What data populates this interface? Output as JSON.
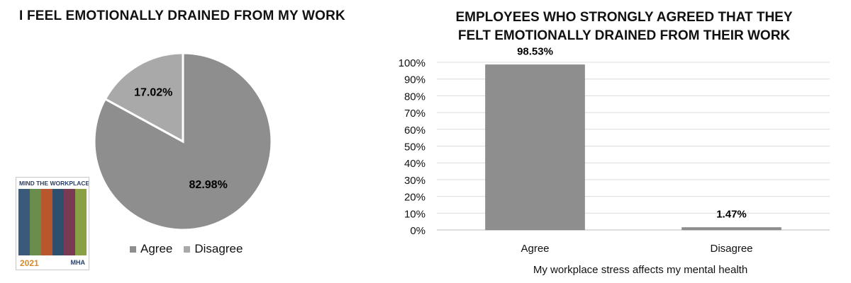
{
  "chart_data": [
    {
      "type": "pie",
      "title": "I FEEL EMOTIONALLY DRAINED FROM MY WORK",
      "slices": [
        {
          "label": "Agree",
          "value": 82.98,
          "display": "82.98%",
          "color": "#8e8e8e"
        },
        {
          "label": "Disagree",
          "value": 17.02,
          "display": "17.02%",
          "color": "#a9a9a9"
        }
      ],
      "legend_position": "bottom"
    },
    {
      "type": "bar",
      "title_lines": [
        "EMPLOYEES WHO STRONGLY AGREED THAT THEY",
        "FELT EMOTIONALLY DRAINED FROM THEIR WORK"
      ],
      "categories": [
        "Agree",
        "Disagree"
      ],
      "values": [
        98.53,
        1.47
      ],
      "data_labels": [
        "98.53%",
        "1.47%"
      ],
      "xlabel": "My workplace stress affects my mental health",
      "ylabel": "",
      "ylim": [
        0,
        100
      ],
      "yticks": [
        "0%",
        "10%",
        "20%",
        "30%",
        "40%",
        "50%",
        "60%",
        "70%",
        "80%",
        "90%",
        "100%"
      ],
      "grid": true,
      "bar_color": "#8e8e8e"
    }
  ],
  "book_cover": {
    "title": "MIND THE WORKPLACE",
    "year": "2021",
    "org": "MHA"
  }
}
